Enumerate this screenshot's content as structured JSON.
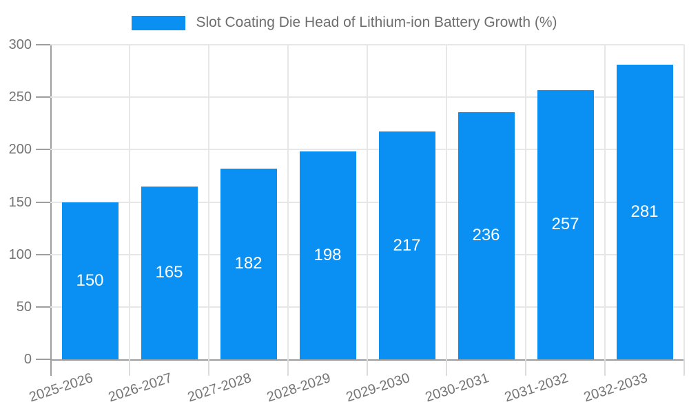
{
  "legend": {
    "label": "Slot Coating Die Head of Lithium-ion Battery Growth (%)"
  },
  "chart_data": {
    "type": "bar",
    "title": "Slot Coating Die Head of Lithium-ion Battery Growth (%)",
    "categories": [
      "2025-2026",
      "2026-2027",
      "2027-2028",
      "2028-2029",
      "2029-2030",
      "2030-2031",
      "2031-2032",
      "2032-2033"
    ],
    "values": [
      150,
      165,
      182,
      198,
      217,
      236,
      257,
      281
    ],
    "xlabel": "",
    "ylabel": "",
    "ylim": [
      0,
      300
    ],
    "yticks": [
      0,
      50,
      100,
      150,
      200,
      250,
      300
    ],
    "grid": true,
    "legend_position": "top",
    "bar_color": "#0A90F3",
    "value_label_color": "#FFFFFF",
    "axis_text_color": "#757575",
    "title_color": "#6E6E6E",
    "grid_color": "#E7E7E7",
    "tick_color": "#DCDCDC",
    "axis_line_color": "#9E9E9E"
  }
}
